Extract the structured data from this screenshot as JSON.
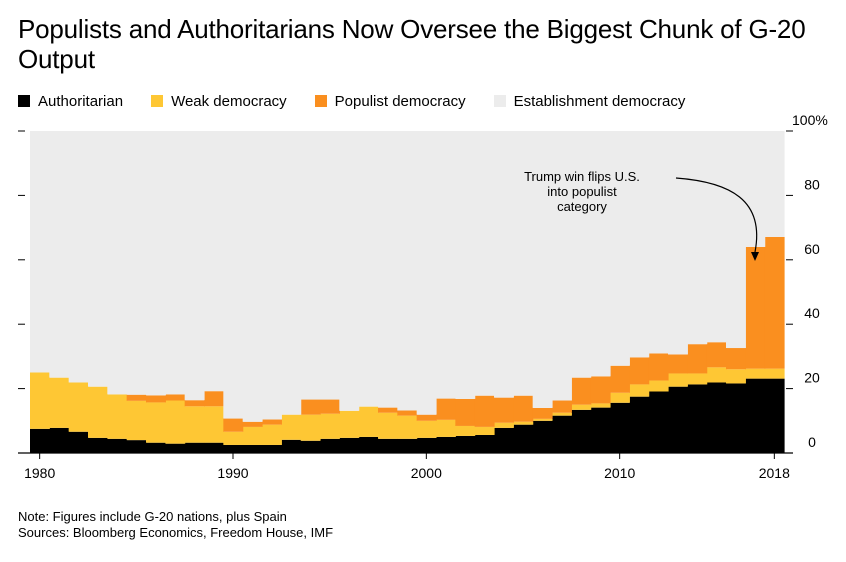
{
  "title": "Populists and Authoritarians Now Oversee the Biggest Chunk of G-20 Output",
  "legend": [
    {
      "label": "Authoritarian",
      "color": "#000000"
    },
    {
      "label": "Weak democracy",
      "color": "#fec734"
    },
    {
      "label": "Populist democracy",
      "color": "#fa8f1f"
    },
    {
      "label": "Establishment democracy",
      "color": "#ececec"
    }
  ],
  "notes": {
    "note": "Note: Figures include G-20 nations, plus Spain",
    "sources": "Sources: Bloomberg Economics, Freedom House, IMF"
  },
  "chart_data": {
    "type": "area",
    "stacked": true,
    "step": true,
    "x": [
      1980,
      1981,
      1982,
      1983,
      1984,
      1985,
      1986,
      1987,
      1988,
      1989,
      1990,
      1991,
      1992,
      1993,
      1994,
      1995,
      1996,
      1997,
      1998,
      1999,
      2000,
      2001,
      2002,
      2003,
      2004,
      2005,
      2006,
      2007,
      2008,
      2009,
      2010,
      2011,
      2012,
      2013,
      2014,
      2015,
      2016,
      2017,
      2018
    ],
    "series": [
      {
        "name": "Authoritarian",
        "color": "#000000",
        "values": [
          7.5,
          7.8,
          6.6,
          4.7,
          4.4,
          4.0,
          3.2,
          2.9,
          3.2,
          3.2,
          2.5,
          2.5,
          2.5,
          4.1,
          3.8,
          4.4,
          4.7,
          5.0,
          4.4,
          4.4,
          4.7,
          5.0,
          5.3,
          5.6,
          7.8,
          8.8,
          10.0,
          11.6,
          13.4,
          14.1,
          15.6,
          17.5,
          19.1,
          20.6,
          21.3,
          21.9,
          21.6,
          23.1,
          23.1
        ]
      },
      {
        "name": "Weak democracy",
        "color": "#fec734",
        "values": [
          17.5,
          15.6,
          15.3,
          15.9,
          13.8,
          12.2,
          12.5,
          13.4,
          11.3,
          11.3,
          4.1,
          5.6,
          6.3,
          7.8,
          8.1,
          7.8,
          8.4,
          9.4,
          8.1,
          7.2,
          5.3,
          5.3,
          3.1,
          2.5,
          1.6,
          0.9,
          0.6,
          0.9,
          1.6,
          1.3,
          3.1,
          3.8,
          3.4,
          4.1,
          3.4,
          4.7,
          4.4,
          3.1,
          3.1
        ]
      },
      {
        "name": "Populist democracy",
        "color": "#fa8f1f",
        "values": [
          0,
          0,
          0,
          0,
          0,
          1.9,
          2.2,
          1.9,
          1.9,
          4.7,
          4.1,
          1.6,
          1.6,
          0,
          4.7,
          4.4,
          0,
          0,
          1.6,
          1.6,
          1.9,
          6.6,
          8.4,
          9.7,
          7.8,
          8.1,
          3.4,
          3.8,
          8.4,
          8.4,
          8.4,
          8.4,
          8.4,
          5.9,
          9.1,
          7.8,
          6.6,
          37.8,
          40.9
        ]
      },
      {
        "name": "Establishment democracy",
        "color": "#ececec",
        "values": [
          75.0,
          76.6,
          78.1,
          79.4,
          81.8,
          81.9,
          82.1,
          81.8,
          83.6,
          80.8,
          89.3,
          90.3,
          89.6,
          88.1,
          83.4,
          83.4,
          86.9,
          85.6,
          85.9,
          86.8,
          88.1,
          83.1,
          83.2,
          82.2,
          82.8,
          82.2,
          86.0,
          83.7,
          76.6,
          76.2,
          72.9,
          70.3,
          69.1,
          69.4,
          66.2,
          65.6,
          67.4,
          36.0,
          32.9
        ]
      }
    ],
    "xlabel": "",
    "ylabel": "",
    "ylim": [
      0,
      100
    ],
    "y_ticks": [
      "0",
      "20",
      "40",
      "60",
      "80",
      "100%"
    ],
    "x_ticks": [
      "1980",
      "1990",
      "2000",
      "2010",
      "2018"
    ],
    "grid": false,
    "legend_position": "top-left",
    "annotation": {
      "text": [
        "Trump win flips U.S.",
        "into populist",
        "category"
      ],
      "year": 2017
    }
  }
}
